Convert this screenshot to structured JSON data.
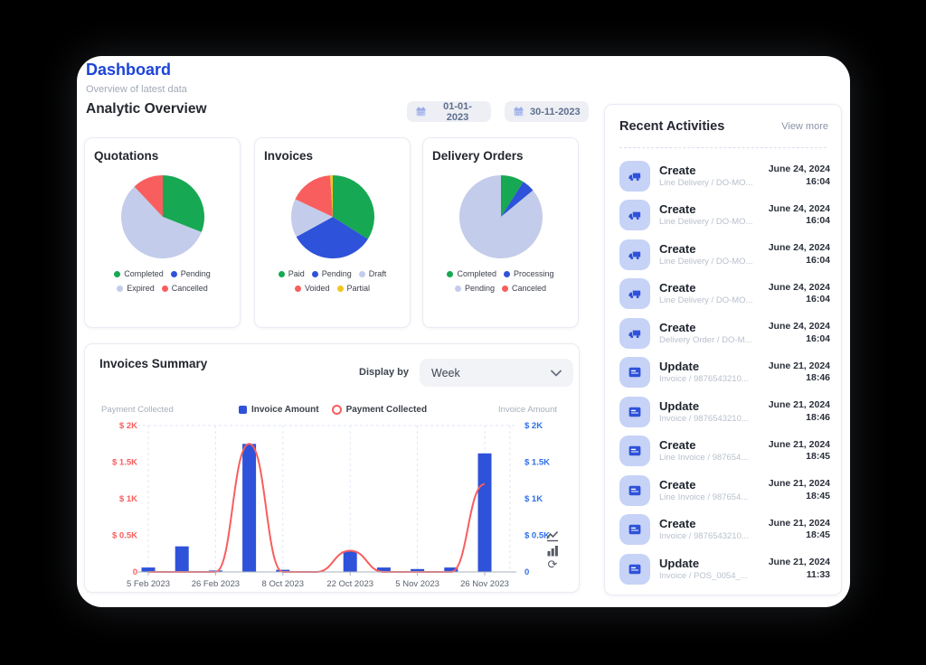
{
  "page": {
    "title": "Dashboard",
    "subtitle": "Overview of latest data"
  },
  "analytic": {
    "heading": "Analytic Overview",
    "date_from": "01-01-2023",
    "date_to": "30-11-2023"
  },
  "colors": {
    "accent_blue": "#1C44D8",
    "series_green": "#17A853",
    "series_blue": "#2E52D9",
    "series_lavender": "#C3CCEA",
    "series_red": "#F85E5E",
    "series_yellow": "#F3C51F"
  },
  "pies": [
    {
      "title": "Quotations",
      "slices": [
        {
          "label": "Completed",
          "value": 31,
          "color": "#17A853"
        },
        {
          "label": "Pending",
          "value": 0,
          "color": "#2E52D9"
        },
        {
          "label": "Expired",
          "value": 57,
          "color": "#C3CCEA"
        },
        {
          "label": "Cancelled",
          "value": 12,
          "color": "#F85E5E"
        }
      ]
    },
    {
      "title": "Invoices",
      "slices": [
        {
          "label": "Paid",
          "value": 34,
          "color": "#17A853"
        },
        {
          "label": "Pending",
          "value": 33,
          "color": "#2E52D9"
        },
        {
          "label": "Draft",
          "value": 15,
          "color": "#C3CCEA"
        },
        {
          "label": "Voided",
          "value": 17,
          "color": "#F85E5E"
        },
        {
          "label": "Partial",
          "value": 1,
          "color": "#F3C51F"
        }
      ]
    },
    {
      "title": "Delivery Orders",
      "slices": [
        {
          "label": "Completed",
          "value": 9,
          "color": "#17A853"
        },
        {
          "label": "Processing",
          "value": 5,
          "color": "#2E52D9"
        },
        {
          "label": "Pending",
          "value": 86,
          "color": "#C3CCEA"
        },
        {
          "label": "Canceled",
          "value": 0,
          "color": "#F85E5E"
        }
      ]
    }
  ],
  "summary": {
    "title": "Invoices Summary",
    "display_by_label": "Display by",
    "display_by_value": "Week",
    "left_axis_name": "Payment Collected",
    "right_axis_name": "Invoice Amount",
    "legend": [
      {
        "label": "Invoice Amount",
        "marker": "square",
        "color": "#2E52D9"
      },
      {
        "label": "Payment Collected",
        "marker": "ring",
        "color": "#F85E5E"
      }
    ]
  },
  "chart_data": {
    "type": "bar",
    "title": "Invoices Summary",
    "categories": [
      "5 Feb 2023",
      "",
      "26 Feb 2023",
      "",
      "8 Oct 2023",
      "",
      "22 Oct 2023",
      "",
      "5 Nov 2023",
      "",
      "26 Nov 2023"
    ],
    "series": [
      {
        "name": "Invoice Amount",
        "type": "bar",
        "axis": "right",
        "color": "#2E52D9",
        "values": [
          60,
          350,
          20,
          1750,
          30,
          0,
          280,
          60,
          40,
          60,
          1620
        ]
      },
      {
        "name": "Payment Collected",
        "type": "line",
        "axis": "left",
        "color": "#F85E5E",
        "values": [
          0,
          0,
          0,
          1750,
          0,
          0,
          290,
          0,
          0,
          0,
          1200
        ]
      }
    ],
    "ylim": [
      0,
      2000
    ],
    "y_ticks": [
      "0",
      "$ 0.5K",
      "$ 1K",
      "$ 1.5K",
      "$ 2K"
    ],
    "left_axis_color": "#F85E5E",
    "right_axis_color": "#2E6FE8",
    "grid": "dashed-vertical",
    "legend_position": "top-center"
  },
  "activities": {
    "title": "Recent Activities",
    "view_more": "View more",
    "items": [
      {
        "icon": "truck",
        "action": "Create",
        "detail": "Line Delivery / DO-MO...",
        "date": "June 24, 2024",
        "time": "16:04"
      },
      {
        "icon": "truck",
        "action": "Create",
        "detail": "Line Delivery / DO-MO...",
        "date": "June 24, 2024",
        "time": "16:04"
      },
      {
        "icon": "truck",
        "action": "Create",
        "detail": "Line Delivery / DO-MO...",
        "date": "June 24, 2024",
        "time": "16:04"
      },
      {
        "icon": "truck",
        "action": "Create",
        "detail": "Line Delivery / DO-MO...",
        "date": "June 24, 2024",
        "time": "16:04"
      },
      {
        "icon": "truck",
        "action": "Create",
        "detail": "Delivery Order / DO-M...",
        "date": "June 24, 2024",
        "time": "16:04"
      },
      {
        "icon": "invoice",
        "action": "Update",
        "detail": "Invoice / 9876543210...",
        "date": "June 21, 2024",
        "time": "18:46"
      },
      {
        "icon": "invoice",
        "action": "Update",
        "detail": "Invoice / 9876543210...",
        "date": "June 21, 2024",
        "time": "18:46"
      },
      {
        "icon": "invoice",
        "action": "Create",
        "detail": "Line Invoice / 987654...",
        "date": "June 21, 2024",
        "time": "18:45"
      },
      {
        "icon": "invoice",
        "action": "Create",
        "detail": "Line Invoice / 987654...",
        "date": "June 21, 2024",
        "time": "18:45"
      },
      {
        "icon": "invoice",
        "action": "Create",
        "detail": "Invoice / 9876543210...",
        "date": "June 21, 2024",
        "time": "18:45"
      },
      {
        "icon": "invoice",
        "action": "Update",
        "detail": "Invoice / POS_0054_...",
        "date": "June 21, 2024",
        "time": "11:33"
      }
    ]
  }
}
